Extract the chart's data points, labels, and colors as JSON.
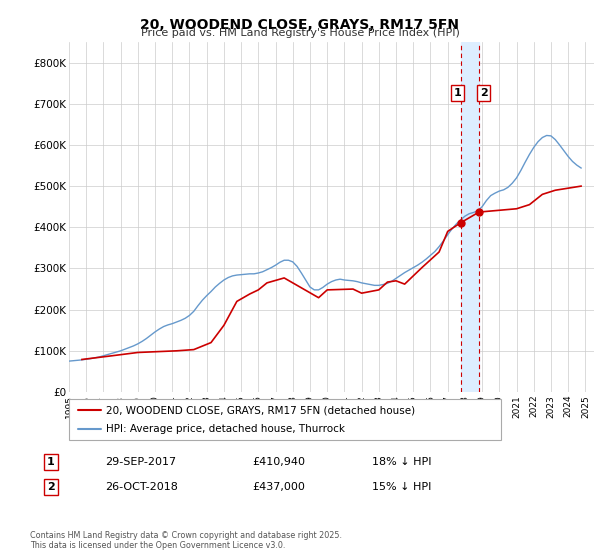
{
  "title": "20, WOODEND CLOSE, GRAYS, RM17 5FN",
  "subtitle": "Price paid vs. HM Land Registry's House Price Index (HPI)",
  "legend_line1": "20, WOODEND CLOSE, GRAYS, RM17 5FN (detached house)",
  "legend_line2": "HPI: Average price, detached house, Thurrock",
  "footnote": "Contains HM Land Registry data © Crown copyright and database right 2025.\nThis data is licensed under the Open Government Licence v3.0.",
  "transaction1_label": "1",
  "transaction1_date": "29-SEP-2017",
  "transaction1_price": "£410,940",
  "transaction1_hpi": "18% ↓ HPI",
  "transaction2_label": "2",
  "transaction2_date": "26-OCT-2018",
  "transaction2_price": "£437,000",
  "transaction2_hpi": "15% ↓ HPI",
  "red_color": "#cc0000",
  "blue_color": "#6699cc",
  "highlight_color": "#ddeeff",
  "vline_color": "#cc0000",
  "marker1_x": 2017.75,
  "marker1_y": 410940,
  "marker2_x": 2018.82,
  "marker2_y": 437000,
  "vline1_x": 2017.75,
  "vline2_x": 2018.82,
  "xlim": [
    1995,
    2025.5
  ],
  "ylim": [
    0,
    850000
  ],
  "yticks": [
    0,
    100000,
    200000,
    300000,
    400000,
    500000,
    600000,
    700000,
    800000
  ],
  "ytick_labels": [
    "£0",
    "£100K",
    "£200K",
    "£300K",
    "£400K",
    "£500K",
    "£600K",
    "£700K",
    "£800K"
  ],
  "xticks": [
    1995,
    1996,
    1997,
    1998,
    1999,
    2000,
    2001,
    2002,
    2003,
    2004,
    2005,
    2006,
    2007,
    2008,
    2009,
    2010,
    2011,
    2012,
    2013,
    2014,
    2015,
    2016,
    2017,
    2018,
    2019,
    2020,
    2021,
    2022,
    2023,
    2024,
    2025
  ],
  "hpi_x": [
    1995.0,
    1995.25,
    1995.5,
    1995.75,
    1996.0,
    1996.25,
    1996.5,
    1996.75,
    1997.0,
    1997.25,
    1997.5,
    1997.75,
    1998.0,
    1998.25,
    1998.5,
    1998.75,
    1999.0,
    1999.25,
    1999.5,
    1999.75,
    2000.0,
    2000.25,
    2000.5,
    2000.75,
    2001.0,
    2001.25,
    2001.5,
    2001.75,
    2002.0,
    2002.25,
    2002.5,
    2002.75,
    2003.0,
    2003.25,
    2003.5,
    2003.75,
    2004.0,
    2004.25,
    2004.5,
    2004.75,
    2005.0,
    2005.25,
    2005.5,
    2005.75,
    2006.0,
    2006.25,
    2006.5,
    2006.75,
    2007.0,
    2007.25,
    2007.5,
    2007.75,
    2008.0,
    2008.25,
    2008.5,
    2008.75,
    2009.0,
    2009.25,
    2009.5,
    2009.75,
    2010.0,
    2010.25,
    2010.5,
    2010.75,
    2011.0,
    2011.25,
    2011.5,
    2011.75,
    2012.0,
    2012.25,
    2012.5,
    2012.75,
    2013.0,
    2013.25,
    2013.5,
    2013.75,
    2014.0,
    2014.25,
    2014.5,
    2014.75,
    2015.0,
    2015.25,
    2015.5,
    2015.75,
    2016.0,
    2016.25,
    2016.5,
    2016.75,
    2017.0,
    2017.25,
    2017.5,
    2017.75,
    2018.0,
    2018.25,
    2018.5,
    2018.75,
    2019.0,
    2019.25,
    2019.5,
    2019.75,
    2020.0,
    2020.25,
    2020.5,
    2020.75,
    2021.0,
    2021.25,
    2021.5,
    2021.75,
    2022.0,
    2022.25,
    2022.5,
    2022.75,
    2023.0,
    2023.25,
    2023.5,
    2023.75,
    2024.0,
    2024.25,
    2024.5,
    2024.75
  ],
  "hpi_y": [
    75000,
    76000,
    77000,
    78000,
    79500,
    81000,
    83000,
    85000,
    88000,
    91000,
    94000,
    97000,
    100000,
    104000,
    108000,
    112000,
    117000,
    123000,
    130000,
    138000,
    146000,
    153000,
    159000,
    163000,
    166000,
    170000,
    174000,
    179000,
    186000,
    196000,
    210000,
    223000,
    234000,
    244000,
    255000,
    264000,
    272000,
    278000,
    282000,
    284000,
    285000,
    286000,
    287000,
    287000,
    289000,
    292000,
    297000,
    302000,
    308000,
    315000,
    320000,
    320000,
    316000,
    305000,
    289000,
    272000,
    255000,
    248000,
    248000,
    254000,
    262000,
    268000,
    272000,
    274000,
    272000,
    271000,
    270000,
    268000,
    265000,
    263000,
    261000,
    259000,
    259000,
    261000,
    264000,
    269000,
    276000,
    283000,
    290000,
    296000,
    302000,
    308000,
    315000,
    323000,
    332000,
    341000,
    353000,
    367000,
    382000,
    396000,
    408000,
    418000,
    427000,
    433000,
    436000,
    440000,
    450000,
    465000,
    477000,
    483000,
    488000,
    491000,
    497000,
    507000,
    520000,
    538000,
    558000,
    577000,
    594000,
    608000,
    618000,
    623000,
    622000,
    613000,
    600000,
    586000,
    572000,
    560000,
    551000,
    544000
  ],
  "price_x": [
    1995.75,
    1997.5,
    1999.0,
    2001.25,
    2002.25,
    2003.25,
    2004.0,
    2004.75,
    2005.5,
    2006.0,
    2006.5,
    2007.5,
    2009.5,
    2010.0,
    2011.5,
    2012.0,
    2013.0,
    2013.5,
    2014.0,
    2014.5,
    2015.5,
    2016.5,
    2017.0,
    2017.75,
    2018.82,
    2021.0,
    2021.75,
    2022.5,
    2023.25,
    2024.75
  ],
  "price_y": [
    79000,
    88000,
    96000,
    100000,
    103000,
    120000,
    162000,
    220000,
    238000,
    248000,
    265000,
    277000,
    229000,
    248000,
    250000,
    240000,
    248000,
    267000,
    270000,
    262000,
    302000,
    340000,
    390000,
    410940,
    437000,
    445000,
    455000,
    480000,
    490000,
    500000
  ]
}
